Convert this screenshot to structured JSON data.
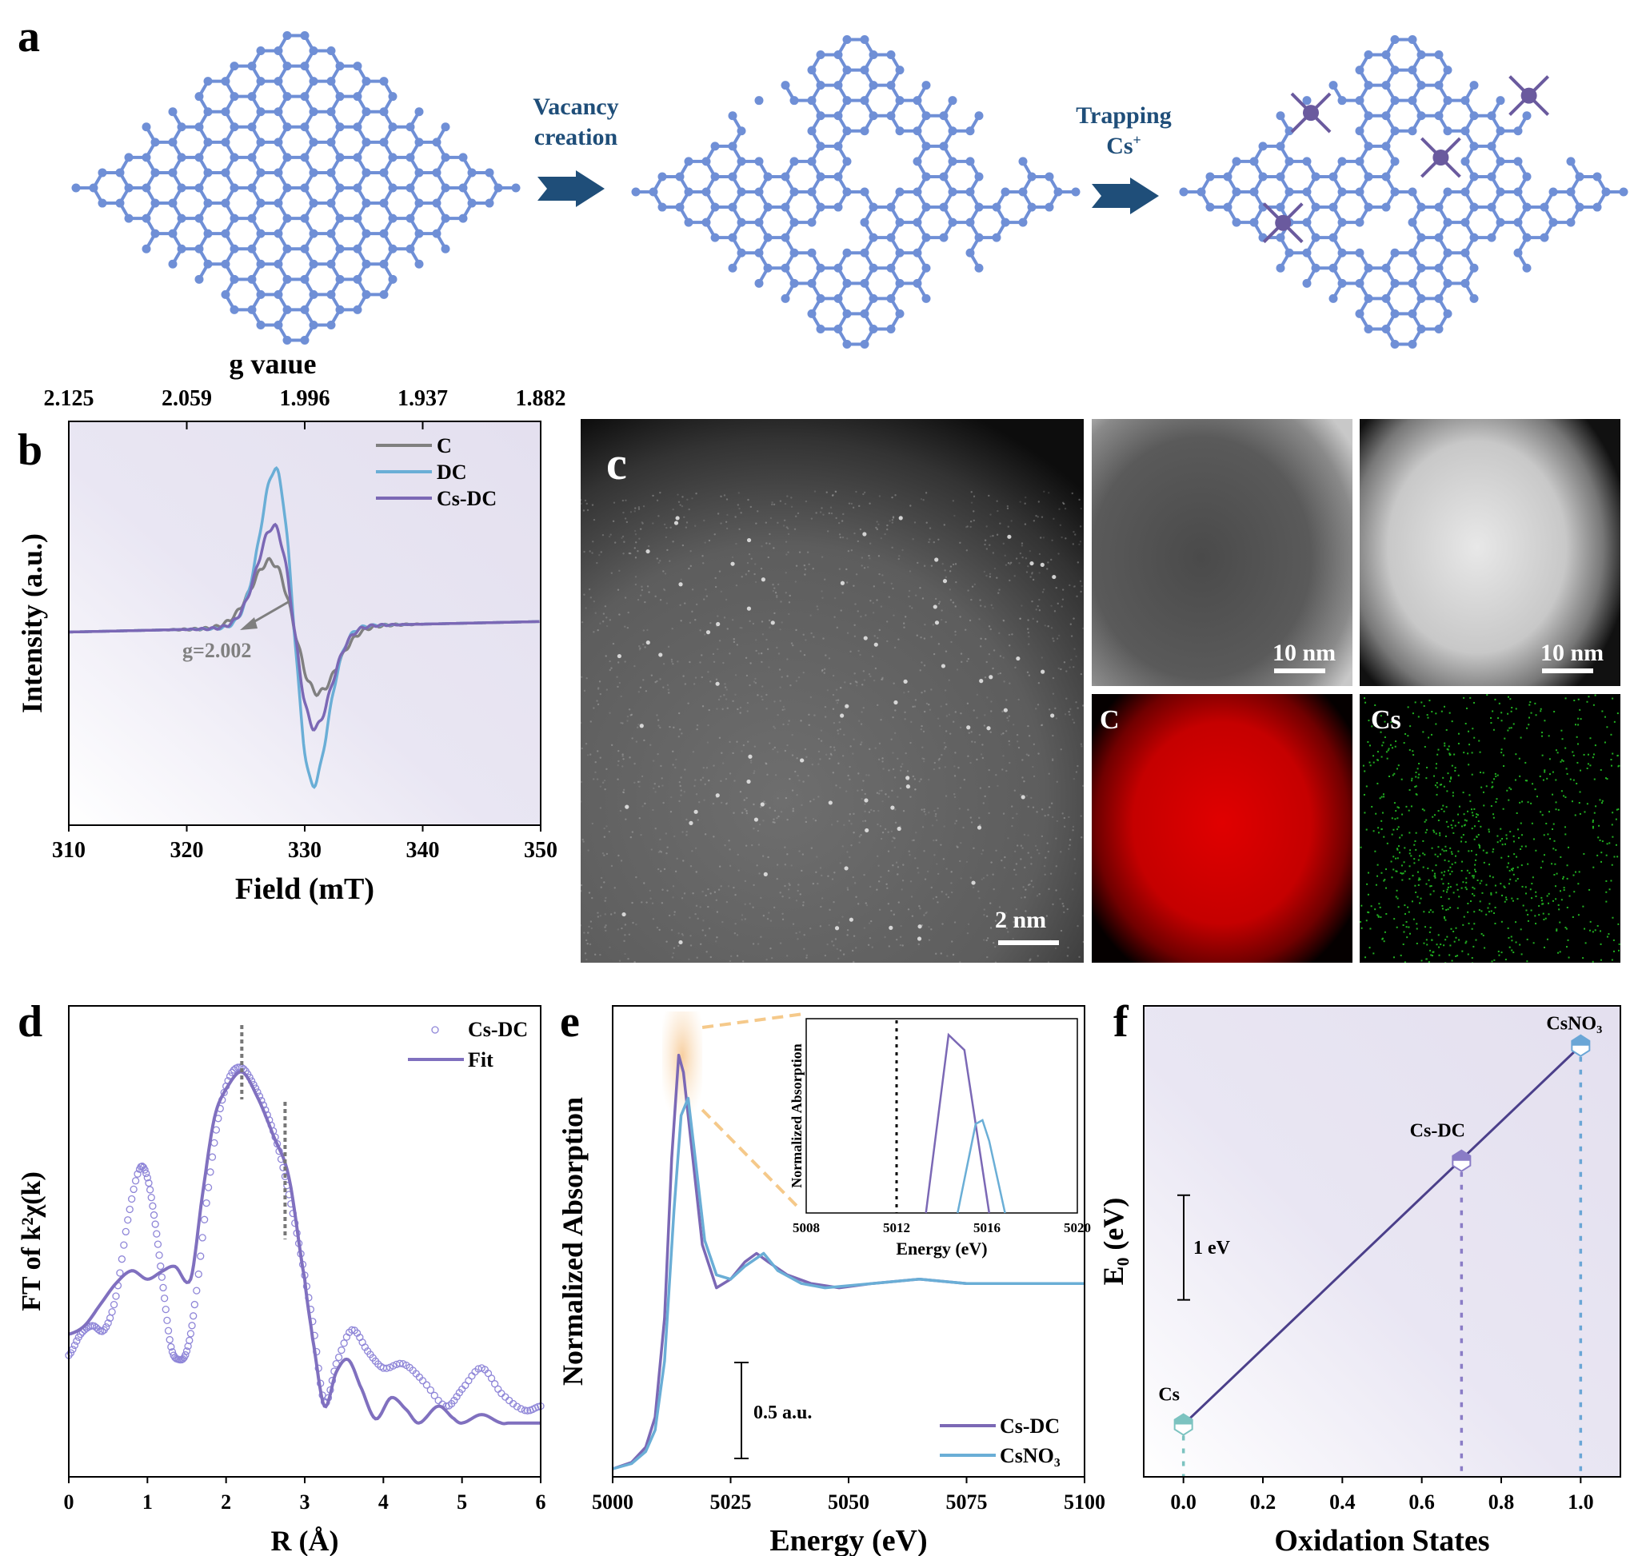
{
  "panels": {
    "a": {
      "letter": "a",
      "step1_label_line1": "Vacancy",
      "step1_label_line2": "creation",
      "step2_label_line1": "Trapping",
      "step2_label_line2": "Cs",
      "step2_label_sup": "+",
      "colors": {
        "carbon": "#6f8fd6",
        "cesium": "#6a5a9e",
        "arrow": "#1f4e79"
      }
    },
    "b": {
      "letter": "b"
    },
    "c": {
      "letter": "c",
      "main_scale": "2 nm",
      "tem_scale": "10 nm",
      "haadf_scale": "10 nm",
      "map_c_label": "C",
      "map_cs_label": "Cs"
    },
    "d": {
      "letter": "d"
    },
    "e": {
      "letter": "e"
    },
    "f": {
      "letter": "f"
    }
  },
  "chart_data": [
    {
      "id": "b",
      "type": "line",
      "title": "",
      "xlabel": "Field (mT)",
      "ylabel": "Intensity (a.u.)",
      "top_axis_label": "g value",
      "top_ticks": [
        "2.125",
        "2.059",
        "1.996",
        "1.937",
        "1.882"
      ],
      "xlim": [
        310,
        350
      ],
      "xticks": [
        "310",
        "320",
        "330",
        "340",
        "350"
      ],
      "ylim": [
        -1.15,
        1.15
      ],
      "legend": "top-right",
      "annotation": "g=2.002",
      "series": [
        {
          "name": "C",
          "color": "#808080",
          "center": 329.1,
          "amplitude": 0.42,
          "width": 2.9
        },
        {
          "name": "DC",
          "color": "#6aaed6",
          "center": 329.1,
          "amplitude": 1.0,
          "width": 2.3
        },
        {
          "name": "Cs-DC",
          "color": "#7b68b5",
          "center": 329.1,
          "amplitude": 0.64,
          "width": 2.5
        }
      ]
    },
    {
      "id": "d",
      "type": "line",
      "xlabel": "R (Å)",
      "ylabel": "FT of k²χ(k)",
      "xlim": [
        0,
        6
      ],
      "xticks": [
        "0",
        "1",
        "2",
        "3",
        "4",
        "5",
        "6"
      ],
      "ylim": [
        0,
        1
      ],
      "legend": "top-right",
      "markers": [
        2.2,
        2.75
      ],
      "series": [
        {
          "name": "Cs-DC",
          "style": "open-circles",
          "color": "#8f86d8",
          "x": [
            0,
            0.15,
            0.3,
            0.45,
            0.6,
            0.75,
            0.9,
            1.0,
            1.1,
            1.2,
            1.3,
            1.4,
            1.5,
            1.6,
            1.75,
            1.9,
            2.05,
            2.2,
            2.35,
            2.5,
            2.65,
            2.8,
            2.95,
            3.1,
            3.25,
            3.4,
            3.6,
            3.8,
            4.0,
            4.25,
            4.5,
            4.8,
            5.0,
            5.25,
            5.5,
            5.8,
            6.0
          ],
          "y": [
            0.24,
            0.29,
            0.31,
            0.3,
            0.38,
            0.56,
            0.68,
            0.66,
            0.55,
            0.4,
            0.26,
            0.23,
            0.25,
            0.36,
            0.6,
            0.8,
            0.9,
            0.92,
            0.88,
            0.82,
            0.74,
            0.62,
            0.48,
            0.32,
            0.13,
            0.22,
            0.3,
            0.25,
            0.21,
            0.22,
            0.18,
            0.12,
            0.16,
            0.21,
            0.15,
            0.11,
            0.12
          ]
        },
        {
          "name": "Fit",
          "style": "line",
          "color": "#8070bf",
          "x": [
            0,
            0.2,
            0.4,
            0.6,
            0.8,
            1.0,
            1.2,
            1.35,
            1.55,
            1.7,
            1.85,
            2.0,
            2.2,
            2.4,
            2.6,
            2.8,
            3.0,
            3.1,
            3.25,
            3.4,
            3.55,
            3.7,
            3.9,
            4.1,
            4.3,
            4.45,
            4.7,
            4.9,
            5.0,
            5.25,
            5.5,
            5.6,
            6.0
          ],
          "y": [
            0.29,
            0.31,
            0.36,
            0.41,
            0.44,
            0.42,
            0.44,
            0.45,
            0.42,
            0.62,
            0.8,
            0.87,
            0.91,
            0.85,
            0.76,
            0.66,
            0.42,
            0.28,
            0.12,
            0.2,
            0.23,
            0.17,
            0.09,
            0.14,
            0.11,
            0.08,
            0.12,
            0.09,
            0.08,
            0.1,
            0.08,
            0.08,
            0.08
          ]
        }
      ]
    },
    {
      "id": "e",
      "type": "line",
      "xlabel": "Energy (eV)",
      "ylabel": "Normalized Absorption",
      "xlim": [
        5000,
        5100
      ],
      "xticks": [
        "5000",
        "5025",
        "5050",
        "5075",
        "5100"
      ],
      "ylim": [
        0,
        1.0
      ],
      "legend": "bottom-right",
      "scale_bar_label": "0.5 a.u.",
      "series": [
        {
          "name": "Cs-DC",
          "color": "#7b68b5",
          "x": [
            5000,
            5004,
            5007,
            5009,
            5011,
            5012.5,
            5014,
            5015,
            5017,
            5019,
            5022,
            5025,
            5028,
            5030.5,
            5033,
            5037,
            5042,
            5048,
            5055,
            5065,
            5075,
            5085,
            5100
          ],
          "y": [
            0.0,
            0.015,
            0.05,
            0.12,
            0.35,
            0.72,
            0.96,
            0.92,
            0.72,
            0.52,
            0.42,
            0.44,
            0.48,
            0.5,
            0.48,
            0.45,
            0.43,
            0.42,
            0.43,
            0.44,
            0.43,
            0.43,
            0.43
          ]
        },
        {
          "name": "CsNO₃",
          "color": "#6aaed6",
          "x": [
            5000,
            5004,
            5007,
            5009,
            5011,
            5013,
            5014.5,
            5016,
            5017.5,
            5019.5,
            5022,
            5025,
            5028,
            5032,
            5035,
            5040,
            5045,
            5055,
            5065,
            5075,
            5085,
            5100
          ],
          "y": [
            0.0,
            0.012,
            0.04,
            0.09,
            0.25,
            0.6,
            0.82,
            0.86,
            0.72,
            0.53,
            0.45,
            0.44,
            0.47,
            0.5,
            0.46,
            0.43,
            0.42,
            0.43,
            0.44,
            0.43,
            0.43,
            0.43
          ]
        }
      ],
      "inset": {
        "xlabel": "Energy (eV)",
        "ylabel": "Normalized Absorption",
        "xlim": [
          5008,
          5020
        ],
        "xticks": [
          "5008",
          "5012",
          "5016",
          "5020"
        ],
        "vline": 5012,
        "series": [
          {
            "name": "Cs-DC",
            "x": [
              5013.3,
              5014.3,
              5015.0,
              5016.1
            ],
            "y": [
              0.0,
              0.94,
              0.86,
              0.0
            ]
          },
          {
            "name": "CsNO₃",
            "x": [
              5014.7,
              5015.5,
              5015.8,
              5016.1,
              5016.8
            ],
            "y": [
              0.0,
              0.47,
              0.49,
              0.38,
              0.0
            ]
          }
        ]
      }
    },
    {
      "id": "f",
      "type": "scatter",
      "xlabel": "Oxidation States",
      "ylabel": "E₀ (eV)",
      "xlim": [
        -0.1,
        1.1
      ],
      "xticks": [
        "0.0",
        "0.2",
        "0.4",
        "0.6",
        "0.8",
        "1.0"
      ],
      "scale_bar_label": "1 eV",
      "points": [
        {
          "label": "Cs",
          "x": 0.0,
          "y": 0.0,
          "color": "#7cc3c0"
        },
        {
          "label": "Cs-DC",
          "x": 0.7,
          "y": 2.52,
          "color": "#8a7cc6"
        },
        {
          "label": "CsNO₃",
          "x": 1.0,
          "y": 3.62,
          "color": "#6aa6d6"
        }
      ],
      "ylim": [
        -0.5,
        4.0
      ],
      "line_color": "#4b3f8a"
    }
  ]
}
